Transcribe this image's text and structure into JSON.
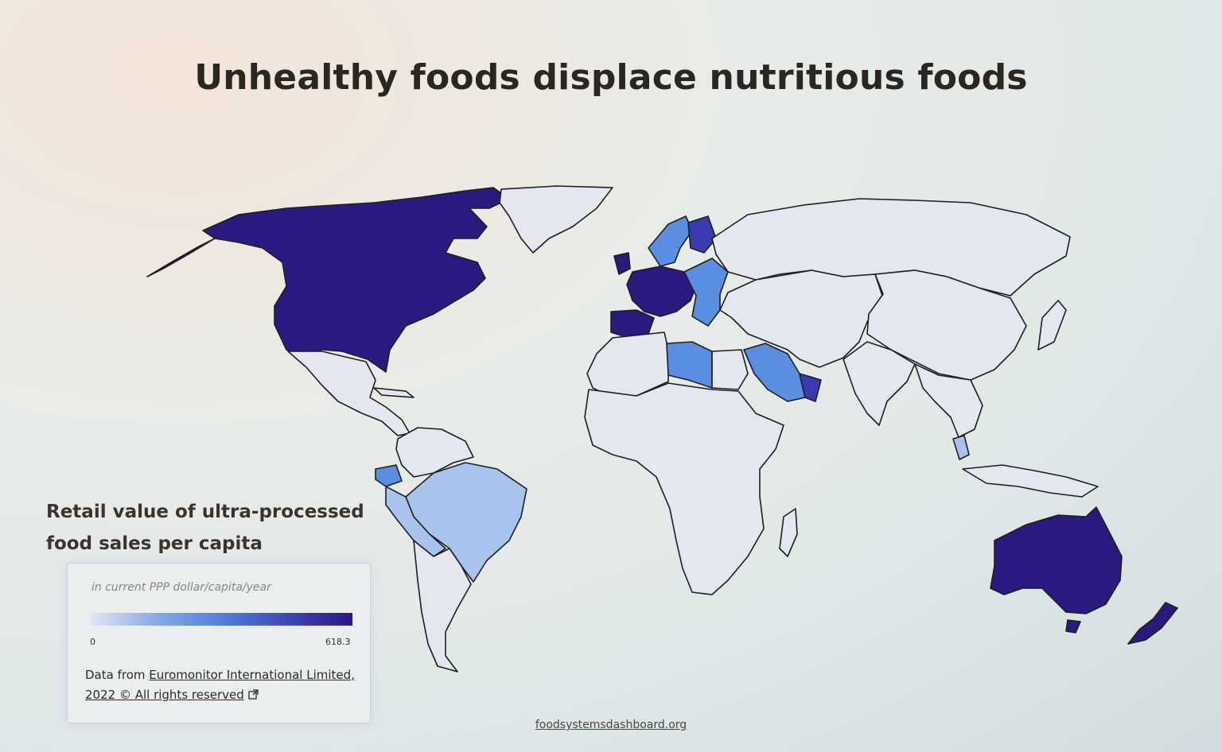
{
  "slide": {
    "title": "Unhealthy foods displace nutritious foods",
    "footer_link": "foodsystemsdashboard.org"
  },
  "panel": {
    "title": "Retail value of ultra-processed food sales per capita",
    "unit": "in current PPP dollar/capita/year",
    "scale_min": "0",
    "scale_max": "618.3",
    "source_prefix": "Data from ",
    "source_link": "Euromonitor International Limited, 2022 © All rights reserved",
    "external_icon": "external-link-icon"
  },
  "colors": {
    "no_data": "#e4e6f0",
    "low": "#a8c4ec",
    "mid": "#5a8ee0",
    "high": "#3b3ab0",
    "highest": "#2a1a80",
    "border": "#1e1e1e"
  },
  "regions": [
    {
      "name": "North America (USA & Canada)",
      "level": "highest"
    },
    {
      "name": "Greenland",
      "level": "no_data"
    },
    {
      "name": "Mexico & Central America",
      "level": "no_data"
    },
    {
      "name": "Colombia & Andean north",
      "level": "no_data"
    },
    {
      "name": "Ecuador",
      "level": "mid"
    },
    {
      "name": "Brazil",
      "level": "low"
    },
    {
      "name": "Peru & Bolivia",
      "level": "low"
    },
    {
      "name": "Southern Cone",
      "level": "no_data"
    },
    {
      "name": "Western Europe",
      "level": "highest"
    },
    {
      "name": "Iberia",
      "level": "highest"
    },
    {
      "name": "Scandinavia",
      "level": "mid"
    },
    {
      "name": "Finland",
      "level": "high"
    },
    {
      "name": "Eastern Europe",
      "level": "mid"
    },
    {
      "name": "Russia",
      "level": "no_data"
    },
    {
      "name": "North Africa west",
      "level": "no_data"
    },
    {
      "name": "Libya",
      "level": "mid"
    },
    {
      "name": "Egypt",
      "level": "no_data"
    },
    {
      "name": "Sub-Saharan Africa",
      "level": "no_data"
    },
    {
      "name": "Saudi Arabia",
      "level": "mid"
    },
    {
      "name": "Oman & Gulf",
      "level": "high"
    },
    {
      "name": "Central Asia & Middle East",
      "level": "no_data"
    },
    {
      "name": "China & Mongolia",
      "level": "no_data"
    },
    {
      "name": "India",
      "level": "no_data"
    },
    {
      "name": "Southeast Asia",
      "level": "no_data"
    },
    {
      "name": "Malaysia",
      "level": "low"
    },
    {
      "name": "Indonesia",
      "level": "no_data"
    },
    {
      "name": "Australia",
      "level": "highest"
    },
    {
      "name": "New Zealand",
      "level": "highest"
    },
    {
      "name": "Japan",
      "level": "no_data"
    }
  ]
}
